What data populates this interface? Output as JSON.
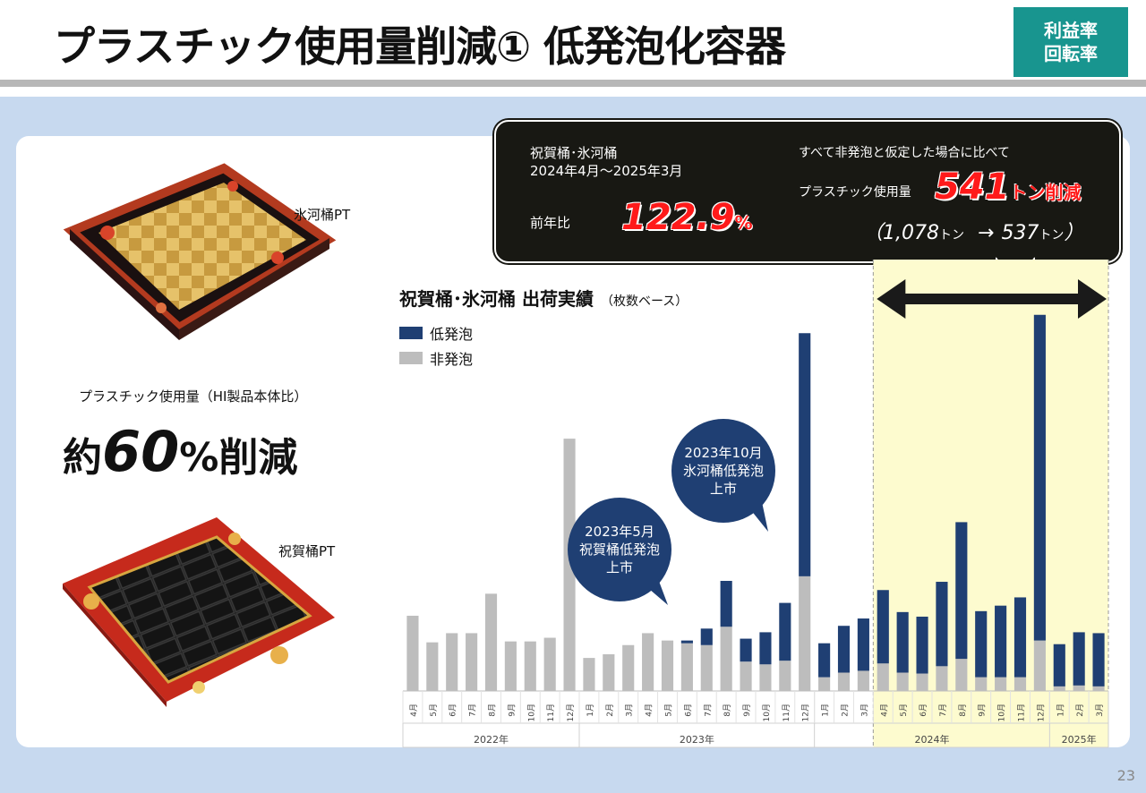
{
  "header": {
    "title": "プラスチック使用量削減① 低発泡化容器",
    "badge_line1": "利益率",
    "badge_line2": "回転率"
  },
  "products": {
    "top_label": "氷河桶PT",
    "bottom_label": "祝賀桶PT",
    "plastic_note": "プラスチック使用量（HI製品本体比）",
    "reduce_prefix": "約",
    "reduce_number": "60",
    "reduce_suffix": "%削減"
  },
  "callout": {
    "left_line1": "祝賀桶･氷河桶",
    "left_line2": "2024年4月～2025年3月",
    "yoy_label": "前年比",
    "yoy_value": "122.9",
    "yoy_unit": "%",
    "right_line1": "すべて非発泡と仮定した場合に比べて",
    "usage_label": "プラスチック使用量",
    "usage_value": "541",
    "usage_unit": "トン削減",
    "from_to_open": "（",
    "from_value": "1,078",
    "from_unit": "トン",
    "arrow": "→",
    "to_value": "537",
    "to_unit": "トン",
    "from_to_close": "）"
  },
  "bubbles": {
    "may": "2023年5月\n祝賀桶低発泡\n上市",
    "oct": "2023年10月\n氷河桶低発泡\n上市"
  },
  "page_number": "23",
  "colors": {
    "low_foam": "#1f3f73",
    "non_foam": "#bdbdbd",
    "highlight": "#fdfbcf",
    "bubble": "#1f3f73"
  },
  "chart_data": {
    "type": "bar",
    "stacked": true,
    "title": "祝賀桶･氷河桶 出荷実績",
    "subtitle": "（枚数ベース）",
    "legend_placement": "top-left",
    "highlight_range": [
      "2024年4月",
      "2025年3月"
    ],
    "x": [
      "4月",
      "5月",
      "6月",
      "7月",
      "8月",
      "9月",
      "10月",
      "11月",
      "12月",
      "1月",
      "2月",
      "3月",
      "4月",
      "5月",
      "6月",
      "7月",
      "8月",
      "9月",
      "10月",
      "11月",
      "12月",
      "1月",
      "2月",
      "3月",
      "4月",
      "5月",
      "6月",
      "7月",
      "8月",
      "9月",
      "10月",
      "11月",
      "12月",
      "1月",
      "2月",
      "3月"
    ],
    "year_groups": [
      {
        "label": "2022年",
        "count": 9
      },
      {
        "label": "2023年",
        "count": 12
      },
      {
        "label": "2024年",
        "count": 12
      },
      {
        "label": "2025年",
        "count": 3
      }
    ],
    "ylim": [
      0,
      400
    ],
    "series": [
      {
        "name": "非発泡",
        "values": [
          82,
          53,
          63,
          63,
          106,
          54,
          54,
          58,
          275,
          36,
          40,
          50,
          63,
          55,
          52,
          50,
          70,
          32,
          29,
          33,
          125,
          15,
          20,
          22,
          30,
          20,
          19,
          27,
          35,
          15,
          15,
          15,
          55,
          5,
          6,
          5
        ]
      },
      {
        "name": "低発泡",
        "values": [
          0,
          0,
          0,
          0,
          0,
          0,
          0,
          0,
          0,
          0,
          0,
          0,
          0,
          0,
          3,
          18,
          50,
          25,
          35,
          63,
          265,
          37,
          51,
          57,
          80,
          66,
          62,
          92,
          149,
          72,
          78,
          87,
          355,
          46,
          58,
          58
        ]
      }
    ]
  }
}
